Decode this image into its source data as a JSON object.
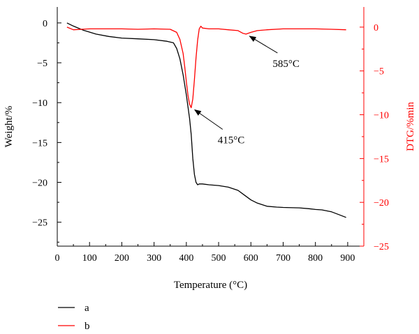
{
  "chart_data": {
    "type": "line",
    "xlabel": "Temperature (°C)",
    "ylabel": "Weight/%",
    "y2label": "DTG/%min",
    "xlim": [
      0,
      950
    ],
    "ylim": [
      -28,
      2
    ],
    "y2lim": [
      -25,
      2.3
    ],
    "grid": false,
    "legend_position": "bottom-left",
    "x_ticks": [
      "0",
      "100",
      "200",
      "300",
      "400",
      "500",
      "600",
      "700",
      "800",
      "900"
    ],
    "x_tick_values": [
      0,
      100,
      200,
      300,
      400,
      500,
      600,
      700,
      800,
      900
    ],
    "y_ticks": [
      "0",
      "−5",
      "−10",
      "−15",
      "−20",
      "−25"
    ],
    "y_tick_values": [
      0,
      -5,
      -10,
      -15,
      -20,
      -25
    ],
    "y2_ticks": [
      "0",
      "−5",
      "−10",
      "−15",
      "−20",
      "−25"
    ],
    "y2_tick_values": [
      0,
      -5,
      -10,
      -15,
      -20,
      -25
    ],
    "series": [
      {
        "name": "a",
        "axis": "left",
        "color": "#000000",
        "x": [
          30,
          50,
          80,
          120,
          160,
          200,
          250,
          300,
          340,
          360,
          370,
          380,
          390,
          400,
          410,
          415,
          420,
          425,
          430,
          435,
          440,
          450,
          470,
          500,
          530,
          560,
          580,
          600,
          620,
          650,
          680,
          700,
          750,
          780,
          800,
          820,
          850,
          870,
          895
        ],
        "y": [
          0,
          -0.4,
          -0.9,
          -1.4,
          -1.7,
          -1.9,
          -2.0,
          -2.1,
          -2.3,
          -2.5,
          -3.2,
          -4.5,
          -6.5,
          -9.0,
          -12.0,
          -14.0,
          -17.0,
          -19.0,
          -20.0,
          -20.3,
          -20.2,
          -20.2,
          -20.3,
          -20.4,
          -20.6,
          -21.0,
          -21.6,
          -22.2,
          -22.6,
          -23.0,
          -23.1,
          -23.15,
          -23.2,
          -23.3,
          -23.4,
          -23.45,
          -23.7,
          -24.0,
          -24.4
        ]
      },
      {
        "name": "b",
        "axis": "right",
        "color": "#ff0000",
        "x": [
          30,
          50,
          100,
          150,
          200,
          250,
          300,
          350,
          370,
          380,
          390,
          395,
          400,
          405,
          410,
          415,
          420,
          425,
          430,
          435,
          440,
          445,
          450,
          470,
          500,
          530,
          560,
          575,
          585,
          600,
          620,
          650,
          700,
          750,
          800,
          850,
          895
        ],
        "y": [
          0,
          -0.3,
          -0.2,
          -0.2,
          -0.2,
          -0.25,
          -0.2,
          -0.25,
          -0.6,
          -1.4,
          -3.0,
          -4.5,
          -6.2,
          -7.8,
          -8.8,
          -9.2,
          -8.2,
          -6.0,
          -3.5,
          -1.5,
          -0.2,
          0.1,
          -0.1,
          -0.2,
          -0.2,
          -0.3,
          -0.4,
          -0.7,
          -0.8,
          -0.6,
          -0.4,
          -0.3,
          -0.2,
          -0.2,
          -0.2,
          -0.25,
          -0.3
        ]
      }
    ],
    "annotations": [
      {
        "text": "415°C",
        "x": 415,
        "y": -9.2,
        "axis": "right"
      },
      {
        "text": "585°C",
        "x": 585,
        "y": -0.8,
        "axis": "right"
      }
    ]
  },
  "legend": [
    {
      "label": "a",
      "color": "#000000"
    },
    {
      "label": "b",
      "color": "#ff0000"
    }
  ]
}
